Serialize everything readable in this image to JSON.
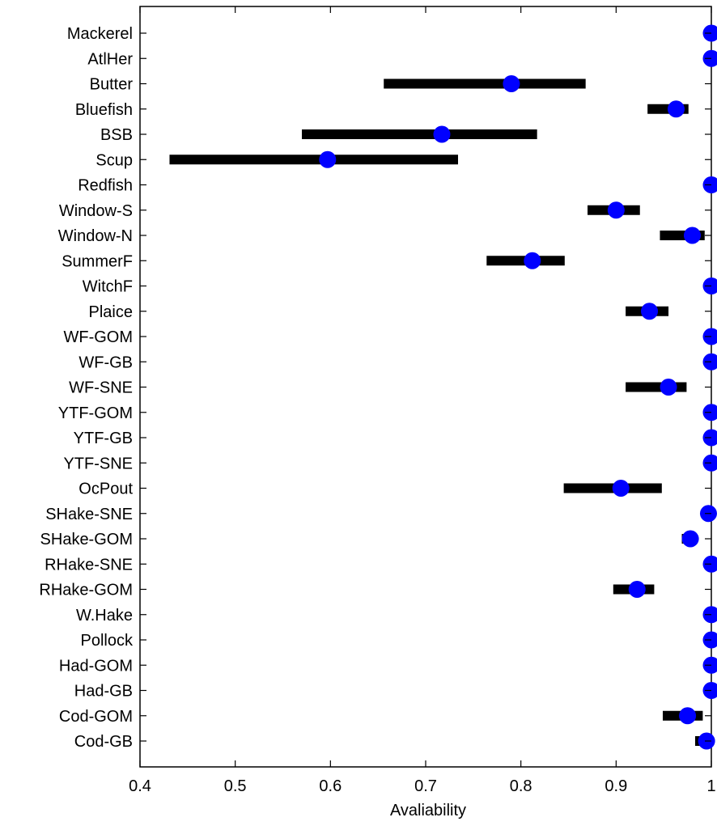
{
  "chart_data": {
    "type": "scatter",
    "xlabel": "Avaliability",
    "ylabel": "",
    "xlim": [
      0.4,
      1.0
    ],
    "xticks": [
      "0.4",
      "0.5",
      "0.6",
      "0.7",
      "0.8",
      "0.9",
      "1"
    ],
    "grid": false,
    "marker_color": "#0000ff",
    "bar_color": "#000000",
    "categories": [
      "Mackerel",
      "AtlHer",
      "Butter",
      "Bluefish",
      "BSB",
      "Scup",
      "Redfish",
      "Window-S",
      "Window-N",
      "SummerF",
      "WitchF",
      "Plaice",
      "WF-GOM",
      "WF-GB",
      "WF-SNE",
      "YTF-GOM",
      "YTF-GB",
      "YTF-SNE",
      "OcPout",
      "SHake-SNE",
      "SHake-GOM",
      "RHake-SNE",
      "RHake-GOM",
      "W.Hake",
      "Pollock",
      "Had-GOM",
      "Had-GB",
      "Cod-GOM",
      "Cod-GB"
    ],
    "values": [
      1.0,
      1.0,
      0.79,
      0.963,
      0.717,
      0.597,
      1.0,
      0.9,
      0.98,
      0.812,
      1.0,
      0.935,
      1.0,
      1.0,
      0.955,
      1.0,
      1.0,
      1.0,
      0.905,
      0.997,
      0.978,
      1.0,
      0.922,
      1.0,
      1.0,
      1.0,
      1.0,
      0.975,
      0.995
    ],
    "low": [
      1.0,
      1.0,
      0.656,
      0.933,
      0.57,
      0.431,
      1.0,
      0.87,
      0.946,
      0.764,
      1.0,
      0.91,
      1.0,
      1.0,
      0.91,
      1.0,
      1.0,
      1.0,
      0.845,
      0.997,
      0.969,
      1.0,
      0.897,
      1.0,
      1.0,
      1.0,
      1.0,
      0.949,
      0.983
    ],
    "high": [
      1.0,
      1.0,
      0.868,
      0.976,
      0.817,
      0.734,
      1.0,
      0.925,
      0.993,
      0.846,
      1.0,
      0.955,
      1.0,
      1.0,
      0.974,
      1.0,
      1.0,
      1.0,
      0.948,
      0.997,
      0.98,
      1.0,
      0.94,
      1.0,
      1.0,
      1.0,
      1.0,
      0.991,
      1.0
    ]
  }
}
